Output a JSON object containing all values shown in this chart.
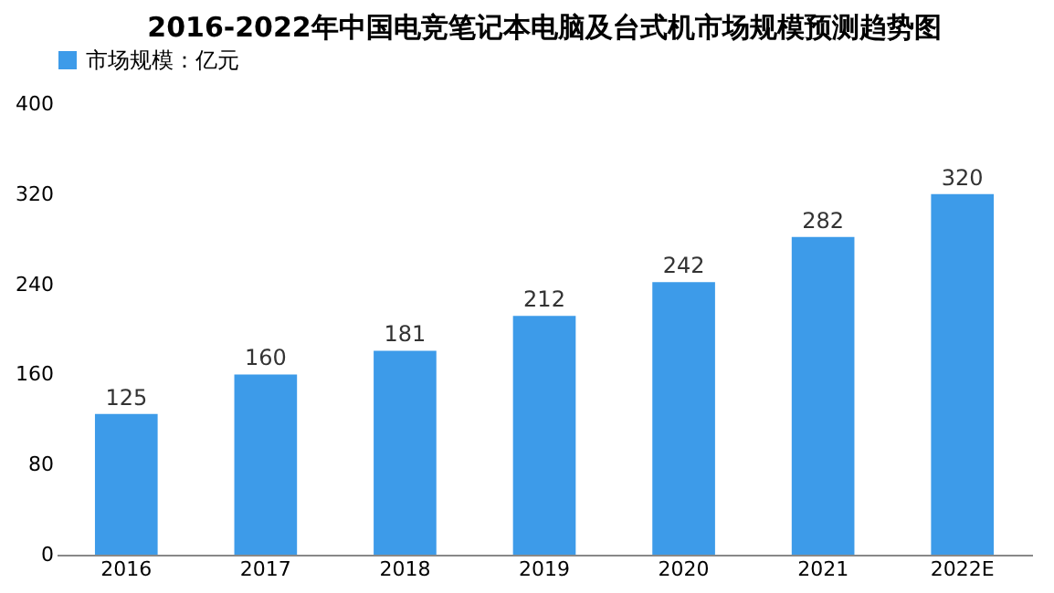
{
  "chart_data": {
    "type": "bar",
    "title": "2016-2022年中国电竞笔记本电脑及台式机市场规模预测趋势图",
    "categories": [
      "2016",
      "2017",
      "2018",
      "2019",
      "2020",
      "2021",
      "2022E"
    ],
    "series": [
      {
        "name": "市场规模：亿元",
        "color": "#3d9be9",
        "values": [
          125,
          160,
          181,
          212,
          242,
          282,
          320
        ]
      }
    ],
    "ylim": [
      0,
      400
    ],
    "yticks": [
      0,
      80,
      160,
      240,
      320,
      400
    ],
    "grid": false,
    "legend": "top",
    "data_labels": true
  }
}
